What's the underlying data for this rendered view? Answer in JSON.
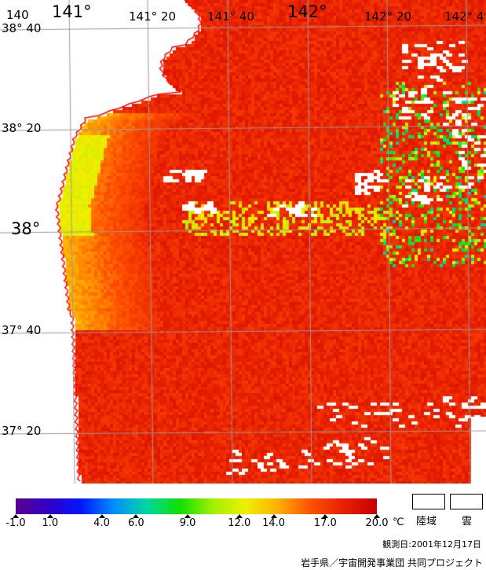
{
  "map": {
    "lon_labels": [
      {
        "text": "140",
        "size": "small"
      },
      {
        "text": "141°",
        "size": "big"
      },
      {
        "text": "141° 20",
        "size": "small"
      },
      {
        "text": "141° 40",
        "size": "small"
      },
      {
        "text": "142°",
        "size": "big"
      },
      {
        "text": "142° 20",
        "size": "small"
      },
      {
        "text": "142° 4",
        "size": "small"
      }
    ],
    "lat_labels": [
      {
        "text": "38° 40",
        "size": "small"
      },
      {
        "text": "38° 20",
        "size": "small"
      },
      {
        "text": "38°",
        "size": "big"
      },
      {
        "text": "37° 40",
        "size": "small"
      },
      {
        "text": "37° 20",
        "size": "small"
      }
    ],
    "colors": {
      "land": "#ffffff",
      "coastline": "#ff0000",
      "grid": "#9a9a9a",
      "cloud": "#ffffff"
    }
  },
  "legend": {
    "unit": "℃",
    "ticks": [
      {
        "value": -1.0,
        "label": "-1.0"
      },
      {
        "value": 1.0,
        "label": "1.0"
      },
      {
        "value": 4.0,
        "label": "4.0"
      },
      {
        "value": 6.0,
        "label": "6.0"
      },
      {
        "value": 9.0,
        "label": "9.0"
      },
      {
        "value": 12.0,
        "label": "12.0"
      },
      {
        "value": 14.0,
        "label": "14.0"
      },
      {
        "value": 17.0,
        "label": "17.0"
      },
      {
        "value": 20.0,
        "label": "20.0"
      }
    ],
    "range": [
      -1.0,
      20.0
    ],
    "land_label": "陸域",
    "cloud_label": "雲",
    "colors": [
      "#5a0090",
      "#3000c8",
      "#0018ff",
      "#0090ff",
      "#00d8a0",
      "#10e000",
      "#a0f000",
      "#f0f000",
      "#ffb000",
      "#ff5000",
      "#e82000",
      "#c80000"
    ]
  },
  "footer": {
    "observation_date": "観測日:2001年12月17日",
    "credit": "岩手県／宇宙開発事業団 共同プロジェクト"
  }
}
